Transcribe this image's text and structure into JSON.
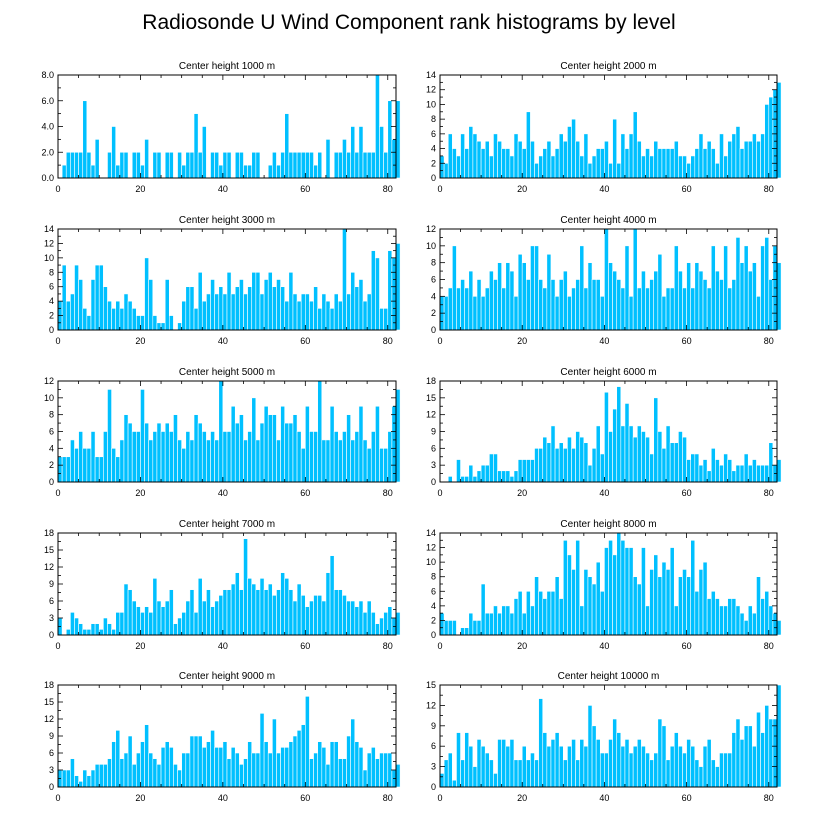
{
  "figure": {
    "title": "Radiosonde U Wind Component rank histograms by level",
    "bar_color": "#00c0ff",
    "bar_edge_color": "#ffffff"
  },
  "chart_data": [
    {
      "type": "bar",
      "title": "Center height 1000 m",
      "xlim": [
        0,
        82
      ],
      "ylim": [
        0,
        8
      ],
      "xticks": [
        0,
        20,
        40,
        60,
        80
      ],
      "yticks": [
        0,
        2,
        4,
        6,
        8
      ],
      "ytick_labels": [
        "0.0",
        "2.0",
        "4.0",
        "6.0",
        "8.0"
      ],
      "values": [
        0,
        1,
        2,
        2,
        2,
        2,
        6,
        2,
        1,
        3,
        0,
        0,
        2,
        4,
        1,
        2,
        2,
        0,
        2,
        2,
        1,
        3,
        0,
        2,
        2,
        0,
        2,
        2,
        0,
        2,
        1,
        2,
        2,
        5,
        2,
        4,
        0,
        2,
        2,
        1,
        2,
        2,
        0,
        2,
        2,
        1,
        1,
        2,
        2,
        0,
        0,
        1,
        2,
        1,
        2,
        5,
        2,
        2,
        2,
        2,
        2,
        2,
        1,
        2,
        0,
        3,
        0,
        2,
        2,
        3,
        2,
        4,
        2,
        4,
        2,
        2,
        2,
        8,
        4,
        2,
        6,
        3,
        6
      ]
    },
    {
      "type": "bar",
      "title": "Center height 2000 m",
      "xlim": [
        0,
        82
      ],
      "ylim": [
        0,
        14
      ],
      "xticks": [
        0,
        20,
        40,
        60,
        80
      ],
      "yticks": [
        0,
        2,
        4,
        6,
        8,
        10,
        12,
        14
      ],
      "ytick_labels": [
        "0",
        "2",
        "4",
        "6",
        "8",
        "10",
        "12",
        "14"
      ],
      "values": [
        3,
        2,
        6,
        4,
        3,
        6,
        4,
        7,
        6,
        5,
        4,
        5,
        3,
        6,
        5,
        4,
        4,
        3,
        6,
        5,
        4,
        9,
        5,
        2,
        3,
        4,
        5,
        3,
        4,
        6,
        5,
        7,
        8,
        5,
        3,
        6,
        2,
        3,
        4,
        4,
        5,
        2,
        8,
        2,
        6,
        4,
        6,
        9,
        5,
        3,
        4,
        3,
        5,
        4,
        4,
        4,
        4,
        5,
        3,
        3,
        2,
        3,
        4,
        6,
        4,
        5,
        4,
        2,
        6,
        3,
        5,
        6,
        7,
        4,
        5,
        5,
        6,
        5,
        6,
        10,
        11,
        12,
        13
      ]
    },
    {
      "type": "bar",
      "title": "Center height 3000 m",
      "xlim": [
        0,
        82
      ],
      "ylim": [
        0,
        14
      ],
      "xticks": [
        0,
        20,
        40,
        60,
        80
      ],
      "yticks": [
        0,
        2,
        4,
        6,
        8,
        10,
        12,
        14
      ],
      "ytick_labels": [
        "0",
        "2",
        "4",
        "6",
        "8",
        "10",
        "12",
        "14"
      ],
      "values": [
        4,
        9,
        4,
        5,
        9,
        7,
        3,
        2,
        7,
        9,
        9,
        6,
        4,
        3,
        4,
        3,
        5,
        4,
        3,
        2,
        2,
        10,
        7,
        2,
        1,
        1,
        7,
        2,
        0,
        1,
        4,
        6,
        6,
        3,
        8,
        4,
        5,
        7,
        5,
        6,
        5,
        8,
        5,
        6,
        7,
        5,
        6,
        8,
        8,
        5,
        7,
        8,
        6,
        7,
        6,
        4,
        8,
        5,
        4,
        5,
        5,
        4,
        6,
        3,
        5,
        4,
        3,
        5,
        4,
        14,
        5,
        8,
        6,
        7,
        4,
        5,
        11,
        10,
        3,
        3,
        11,
        10,
        12
      ]
    },
    {
      "type": "bar",
      "title": "Center height 4000 m",
      "xlim": [
        0,
        82
      ],
      "ylim": [
        0,
        12
      ],
      "xticks": [
        0,
        20,
        40,
        60,
        80
      ],
      "yticks": [
        0,
        2,
        4,
        6,
        8,
        10,
        12
      ],
      "ytick_labels": [
        "0",
        "2",
        "4",
        "6",
        "8",
        "10",
        "12"
      ],
      "values": [
        4,
        4,
        5,
        10,
        5,
        6,
        5,
        7,
        4,
        6,
        4,
        5,
        7,
        6,
        8,
        5,
        8,
        7,
        4,
        9,
        8,
        6,
        10,
        10,
        6,
        5,
        9,
        6,
        4,
        6,
        7,
        4,
        5,
        6,
        10,
        5,
        8,
        6,
        6,
        4,
        12,
        8,
        7,
        6,
        5,
        10,
        4,
        12,
        5,
        7,
        5,
        6,
        7,
        9,
        4,
        5,
        5,
        10,
        7,
        5,
        8,
        5,
        8,
        7,
        6,
        5,
        10,
        7,
        6,
        10,
        5,
        6,
        11,
        8,
        10,
        7,
        8,
        4,
        10,
        11,
        6,
        10,
        8
      ]
    },
    {
      "type": "bar",
      "title": "Center height 5000 m",
      "xlim": [
        0,
        82
      ],
      "ylim": [
        0,
        12
      ],
      "xticks": [
        0,
        20,
        40,
        60,
        80
      ],
      "yticks": [
        0,
        2,
        4,
        6,
        8,
        10,
        12
      ],
      "ytick_labels": [
        "0",
        "2",
        "4",
        "6",
        "8",
        "10",
        "12"
      ],
      "values": [
        3,
        3,
        3,
        5,
        4,
        6,
        4,
        4,
        6,
        3,
        3,
        6,
        11,
        4,
        3,
        5,
        8,
        7,
        6,
        6,
        11,
        7,
        5,
        6,
        7,
        6,
        7,
        6,
        8,
        5,
        4,
        6,
        5,
        8,
        7,
        6,
        5,
        6,
        5,
        12,
        6,
        6,
        9,
        7,
        8,
        5,
        6,
        10,
        5,
        7,
        9,
        8,
        8,
        5,
        9,
        7,
        7,
        8,
        6,
        4,
        9,
        6,
        6,
        12,
        5,
        5,
        9,
        6,
        5,
        6,
        8,
        5,
        6,
        9,
        5,
        4,
        6,
        9,
        4,
        4,
        6,
        9,
        11
      ]
    },
    {
      "type": "bar",
      "title": "Center height 6000 m",
      "xlim": [
        0,
        82
      ],
      "ylim": [
        0,
        18
      ],
      "xticks": [
        0,
        20,
        40,
        60,
        80
      ],
      "yticks": [
        0,
        3,
        6,
        9,
        12,
        15,
        18
      ],
      "ytick_labels": [
        "0",
        "3",
        "6",
        "9",
        "12",
        "15",
        "18"
      ],
      "values": [
        0,
        0,
        1,
        0,
        4,
        1,
        1,
        3,
        1,
        2,
        3,
        3,
        5,
        5,
        2,
        2,
        2,
        1,
        2,
        4,
        4,
        4,
        4,
        6,
        6,
        8,
        7,
        10,
        6,
        7,
        6,
        8,
        6,
        9,
        8,
        7,
        3,
        6,
        10,
        5,
        16,
        9,
        13,
        17,
        10,
        14,
        10,
        8,
        10,
        9,
        8,
        5,
        15,
        9,
        6,
        10,
        7,
        7,
        9,
        8,
        4,
        5,
        5,
        3,
        4,
        2,
        6,
        4,
        3,
        5,
        4,
        2,
        3,
        3,
        5,
        3,
        4,
        3,
        3,
        3,
        7,
        3,
        4
      ]
    },
    {
      "type": "bar",
      "title": "Center height 7000 m",
      "xlim": [
        0,
        82
      ],
      "ylim": [
        0,
        18
      ],
      "xticks": [
        0,
        20,
        40,
        60,
        80
      ],
      "yticks": [
        0,
        3,
        6,
        9,
        12,
        15,
        18
      ],
      "ytick_labels": [
        "0",
        "3",
        "6",
        "9",
        "12",
        "15",
        "18"
      ],
      "values": [
        3,
        0,
        1,
        4,
        3,
        2,
        1,
        1,
        2,
        2,
        1,
        3,
        2,
        1,
        4,
        4,
        9,
        8,
        6,
        5,
        4,
        5,
        4,
        10,
        6,
        5,
        6,
        8,
        2,
        3,
        4,
        6,
        8,
        4,
        10,
        6,
        8,
        5,
        6,
        7,
        8,
        8,
        9,
        11,
        8,
        17,
        10,
        9,
        8,
        10,
        8,
        9,
        7,
        8,
        11,
        10,
        8,
        6,
        9,
        7,
        5,
        6,
        7,
        7,
        6,
        11,
        14,
        8,
        8,
        7,
        6,
        6,
        5,
        6,
        4,
        6,
        4,
        2,
        3,
        4,
        5,
        3,
        4
      ]
    },
    {
      "type": "bar",
      "title": "Center height 8000 m",
      "xlim": [
        0,
        82
      ],
      "ylim": [
        0,
        14
      ],
      "xticks": [
        0,
        20,
        40,
        60,
        80
      ],
      "yticks": [
        0,
        2,
        4,
        6,
        8,
        10,
        12,
        14
      ],
      "ytick_labels": [
        "0",
        "2",
        "4",
        "6",
        "8",
        "10",
        "12",
        "14"
      ],
      "values": [
        3,
        2,
        2,
        2,
        0,
        1,
        1,
        3,
        2,
        2,
        7,
        3,
        3,
        4,
        3,
        4,
        4,
        3,
        5,
        6,
        3,
        6,
        4,
        8,
        6,
        5,
        6,
        6,
        8,
        5,
        13,
        11,
        9,
        13,
        4,
        9,
        8,
        7,
        10,
        6,
        12,
        13,
        11,
        14,
        13,
        12,
        12,
        8,
        7,
        12,
        4,
        9,
        11,
        8,
        10,
        9,
        12,
        4,
        8,
        9,
        8,
        13,
        6,
        9,
        10,
        5,
        6,
        5,
        4,
        4,
        5,
        5,
        4,
        3,
        2,
        4,
        3,
        8,
        5,
        6,
        4,
        3,
        2
      ]
    },
    {
      "type": "bar",
      "title": "Center height 9000 m",
      "xlim": [
        0,
        82
      ],
      "ylim": [
        0,
        18
      ],
      "xticks": [
        0,
        20,
        40,
        60,
        80
      ],
      "yticks": [
        0,
        3,
        6,
        9,
        12,
        15,
        18
      ],
      "ytick_labels": [
        "0",
        "3",
        "6",
        "9",
        "12",
        "15",
        "18"
      ],
      "values": [
        3,
        3,
        3,
        5,
        2,
        1,
        3,
        2,
        3,
        4,
        4,
        4,
        5,
        8,
        10,
        5,
        6,
        9,
        4,
        6,
        8,
        11,
        6,
        5,
        4,
        7,
        8,
        7,
        4,
        3,
        6,
        6,
        9,
        9,
        9,
        7,
        8,
        10,
        7,
        7,
        8,
        5,
        7,
        6,
        4,
        5,
        8,
        6,
        6,
        13,
        8,
        6,
        12,
        6,
        7,
        7,
        8,
        9,
        10,
        11,
        16,
        5,
        6,
        8,
        7,
        4,
        8,
        8,
        5,
        5,
        9,
        12,
        8,
        7,
        3,
        6,
        7,
        5,
        6,
        6,
        6,
        3,
        4
      ]
    },
    {
      "type": "bar",
      "title": "Center height 10000 m",
      "xlim": [
        0,
        82
      ],
      "ylim": [
        0,
        15
      ],
      "xticks": [
        0,
        20,
        40,
        60,
        80
      ],
      "yticks": [
        0,
        3,
        6,
        9,
        12,
        15
      ],
      "ytick_labels": [
        "0",
        "3",
        "6",
        "9",
        "12",
        "15"
      ],
      "values": [
        2,
        4,
        5,
        1,
        8,
        4,
        8,
        6,
        3,
        7,
        6,
        5,
        4,
        2,
        7,
        7,
        6,
        7,
        4,
        4,
        6,
        4,
        5,
        4,
        13,
        8,
        6,
        7,
        8,
        6,
        4,
        6,
        7,
        4,
        7,
        6,
        12,
        9,
        7,
        5,
        5,
        7,
        10,
        8,
        6,
        7,
        5,
        6,
        7,
        6,
        5,
        4,
        5,
        10,
        9,
        4,
        6,
        8,
        6,
        5,
        7,
        6,
        4,
        3,
        6,
        7,
        4,
        3,
        5,
        5,
        5,
        8,
        10,
        7,
        9,
        9,
        6,
        11,
        8,
        12,
        10,
        10,
        15
      ]
    }
  ]
}
